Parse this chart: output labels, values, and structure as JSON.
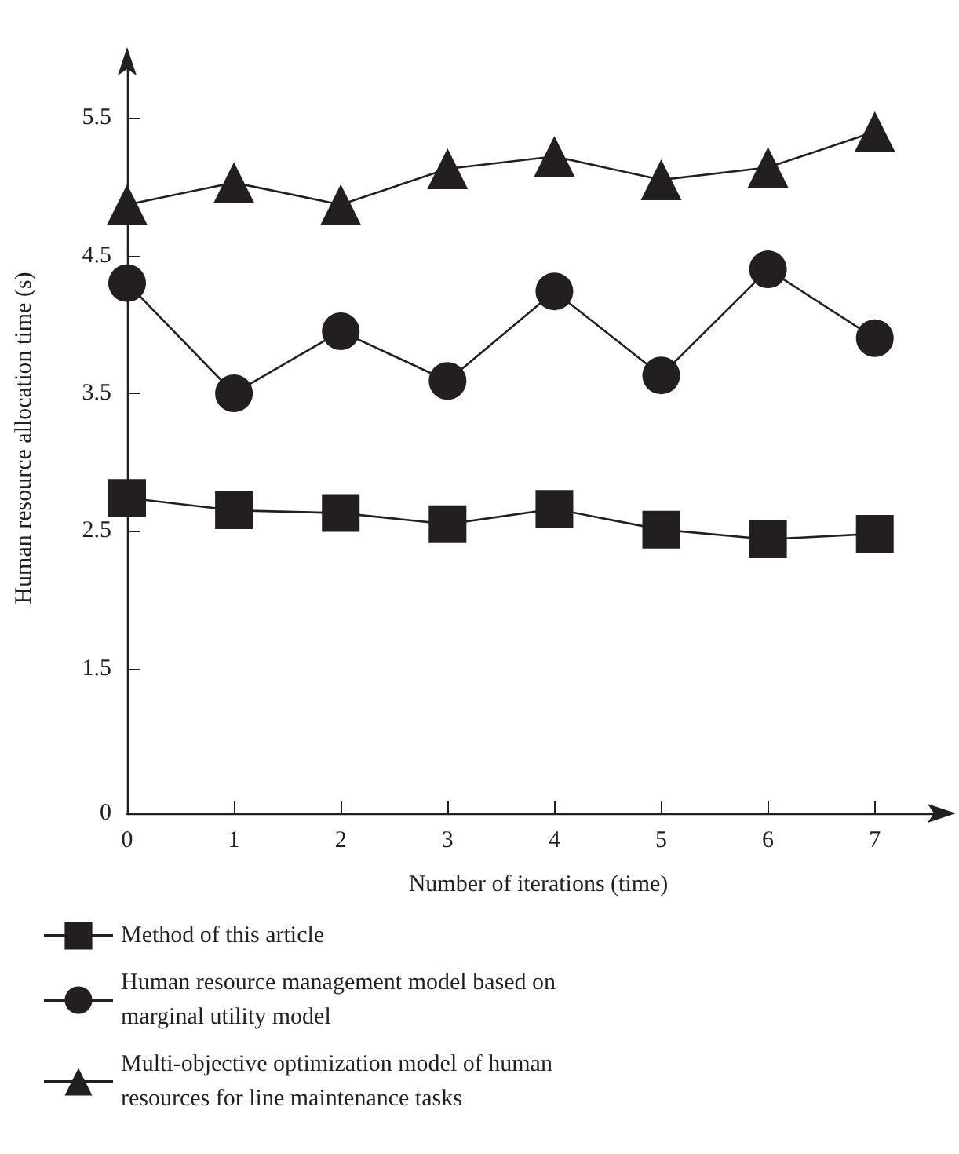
{
  "chart_data": {
    "type": "line",
    "xlabel": "Number of iterations (time)",
    "ylabel": "Human resource allocation time (s)",
    "x": [
      0,
      1,
      2,
      3,
      4,
      5,
      6,
      7
    ],
    "xlim": [
      0,
      7.7
    ],
    "xticks": [
      0,
      1,
      2,
      3,
      4,
      5,
      6,
      7
    ],
    "ylim": [
      0.45,
      5.9
    ],
    "yticks": [
      {
        "value": 0.45,
        "label": "0"
      },
      1.5,
      2.5,
      3.5,
      4.5,
      5.5
    ],
    "grid": false,
    "legend": "bottom",
    "line_style": "solid",
    "series": [
      {
        "name": "Method of this article",
        "color": "#231f20",
        "marker": "square",
        "values": [
          2.74,
          2.65,
          2.63,
          2.55,
          2.66,
          2.51,
          2.44,
          2.48
        ]
      },
      {
        "name": "Human resource management model based on marginal utility model",
        "color": "#231f20",
        "marker": "circle",
        "values": [
          4.3,
          3.5,
          3.95,
          3.59,
          4.24,
          3.63,
          4.4,
          3.9
        ]
      },
      {
        "name": "Multi-objective optimization model of human resources for line maintenance tasks",
        "color": "#231f20",
        "marker": "triangle",
        "values": [
          4.87,
          5.03,
          4.87,
          5.13,
          5.22,
          5.05,
          5.14,
          5.4
        ]
      }
    ]
  }
}
